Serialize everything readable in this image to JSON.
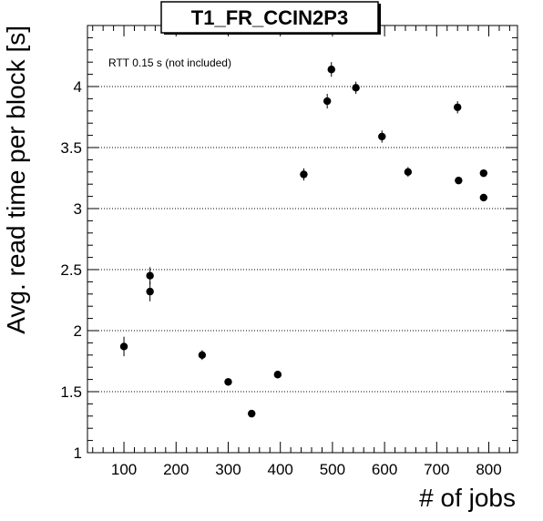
{
  "chart_data": {
    "type": "scatter",
    "title": "T1_FR_CCIN2P3",
    "xlabel": "# of jobs",
    "ylabel": "Avg. read time per block [s]",
    "annotation": "RTT 0.15 s (not included)",
    "xlim": [
      30,
      855
    ],
    "ylim": [
      1,
      4.5
    ],
    "x_ticks": [
      100,
      200,
      300,
      400,
      500,
      600,
      700,
      800
    ],
    "y_ticks": [
      1,
      1.5,
      2,
      2.5,
      3,
      3.5,
      4
    ],
    "y_tick_labels": [
      "1",
      "1.5",
      "2",
      "2.5",
      "3",
      "3.5",
      "4"
    ],
    "grid": "y-dotted",
    "points": [
      {
        "x": 100,
        "y": 1.87,
        "err": 0.08
      },
      {
        "x": 150,
        "y": 2.45,
        "err": 0.07
      },
      {
        "x": 150,
        "y": 2.32,
        "err": 0.08
      },
      {
        "x": 250,
        "y": 1.8,
        "err": 0.04
      },
      {
        "x": 300,
        "y": 1.58,
        "err": 0.03
      },
      {
        "x": 345,
        "y": 1.32,
        "err": 0.02
      },
      {
        "x": 395,
        "y": 1.64,
        "err": 0.02
      },
      {
        "x": 445,
        "y": 3.28,
        "err": 0.05
      },
      {
        "x": 490,
        "y": 3.88,
        "err": 0.06
      },
      {
        "x": 498,
        "y": 4.14,
        "err": 0.06
      },
      {
        "x": 545,
        "y": 3.99,
        "err": 0.05
      },
      {
        "x": 595,
        "y": 3.59,
        "err": 0.05
      },
      {
        "x": 645,
        "y": 3.3,
        "err": 0.04
      },
      {
        "x": 740,
        "y": 3.83,
        "err": 0.05
      },
      {
        "x": 742,
        "y": 3.23,
        "err": 0.03
      },
      {
        "x": 790,
        "y": 3.29,
        "err": 0.03
      },
      {
        "x": 790,
        "y": 3.09,
        "err": 0.03
      }
    ]
  }
}
